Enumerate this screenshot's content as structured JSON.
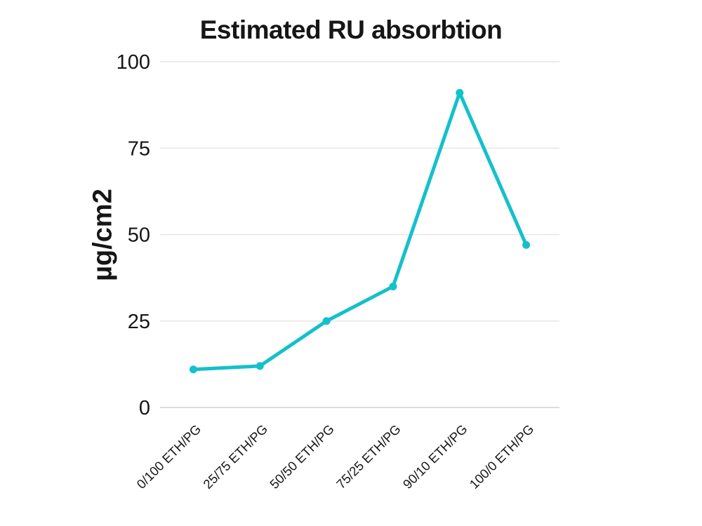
{
  "chart_data": {
    "type": "line",
    "title": "Estimated RU absorbtion",
    "ylabel": "µg/cm2",
    "xlabel": "",
    "categories": [
      "0/100 ETH/PG",
      "25/75 ETH/PG",
      "50/50 ETH/PG",
      "75/25 ETH/PG",
      "90/10 ETH/PG",
      "100/0 ETH/PG"
    ],
    "series": [
      {
        "name": "Estimated RU absorbtion",
        "values": [
          11,
          12,
          25,
          35,
          91,
          47
        ]
      }
    ],
    "ylim": [
      0,
      100
    ],
    "yticks": [
      0,
      25,
      50,
      75,
      100
    ],
    "grid": "horizontal",
    "legend": "none",
    "line_color": "#14c0cb",
    "grid_color": "#e6e6e6",
    "baseline_color": "#d2d2d2",
    "text_color": "#161616"
  }
}
